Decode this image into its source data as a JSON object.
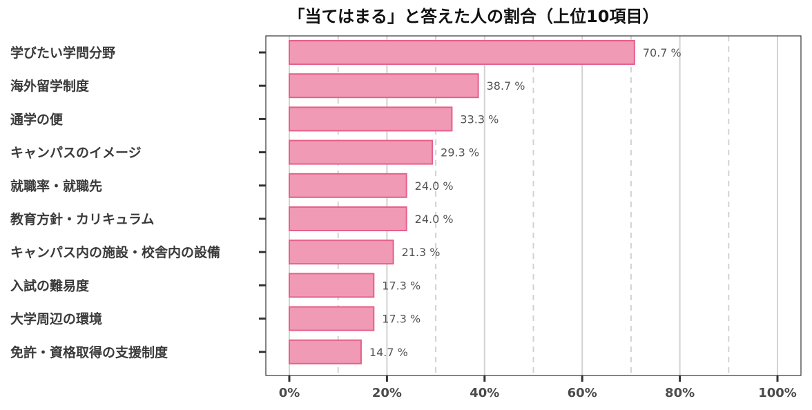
{
  "chart_data": {
    "type": "bar",
    "orientation": "horizontal",
    "title": "「当てはまる」と答えた人の割合（上位10項目）",
    "categories": [
      "学びたい学問分野",
      "海外留学制度",
      "通学の便",
      "キャンパスのイメージ",
      "就職率・就職先",
      "教育方針・カリキュラム",
      "キャンパス内の施設・校舎内の設備",
      "入試の難易度",
      "大学周辺の環境",
      "免許・資格取得の支援制度"
    ],
    "values": [
      70.7,
      38.7,
      33.3,
      29.3,
      24.0,
      24.0,
      21.3,
      17.3,
      17.3,
      14.7
    ],
    "data_labels": [
      "70.7 %",
      "38.7 %",
      "33.3 %",
      "29.3 %",
      "24.0 %",
      "24.0 %",
      "21.3 %",
      "17.3 %",
      "17.3 %",
      "14.7 %"
    ],
    "xlabel": "",
    "ylabel": "",
    "xlim": [
      0,
      100
    ],
    "x_ticks": [
      0,
      20,
      40,
      60,
      80,
      100
    ],
    "x_tick_labels": [
      "0%",
      "20%",
      "40%",
      "60%",
      "80%",
      "100%"
    ],
    "x_minor_ticks": [
      10,
      30,
      50,
      70,
      90
    ],
    "grid": true,
    "legend": "none",
    "colors": {
      "bar_fill": "#f09ab5",
      "bar_edge": "#e5608a"
    }
  }
}
